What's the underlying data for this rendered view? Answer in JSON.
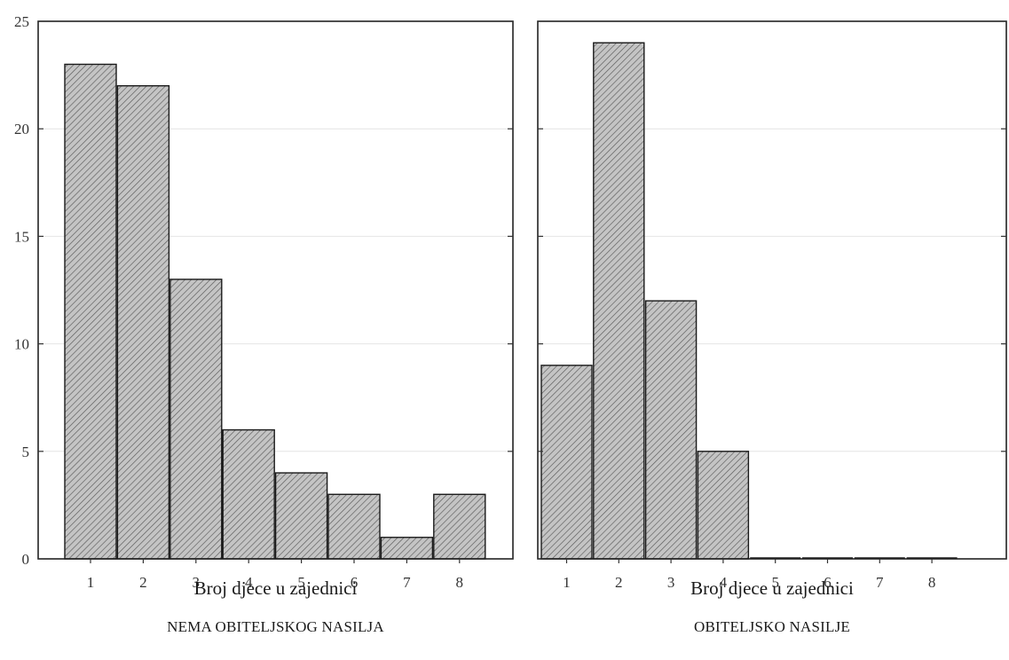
{
  "chart_data": [
    {
      "type": "bar",
      "panel": "left",
      "categories": [
        "1",
        "2",
        "3",
        "4",
        "5",
        "6",
        "7",
        "8"
      ],
      "values": [
        23,
        22,
        13,
        6,
        4,
        3,
        1,
        3
      ],
      "xlabel": "Broj djece u zajednici",
      "caption": "NEMA OBITELJSKOG NASILJA",
      "ylim": [
        0,
        25
      ],
      "yticks": [
        0,
        5,
        10,
        15,
        20,
        25
      ],
      "grid": true,
      "bar_pattern": "diagonal-hatch"
    },
    {
      "type": "bar",
      "panel": "right",
      "categories": [
        "1",
        "2",
        "3",
        "4",
        "5",
        "6",
        "7",
        "8"
      ],
      "values": [
        9,
        24,
        12,
        5,
        0,
        0,
        0,
        0
      ],
      "xlabel": "Broj djece u zajednici",
      "caption": "OBITELJSKO NASILJE",
      "ylim": [
        0,
        25
      ],
      "yticks": [
        0,
        5,
        10,
        15,
        20,
        25
      ],
      "grid": true,
      "bar_pattern": "diagonal-hatch"
    }
  ],
  "colors": {
    "bar_fill": "#bdbdbd",
    "hatch": "#5a5a5a",
    "frame": "#222222"
  }
}
